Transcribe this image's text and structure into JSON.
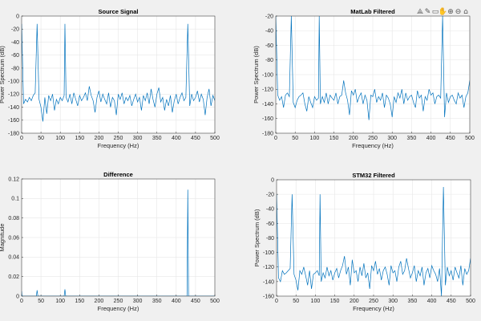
{
  "toolbar": {
    "icons": [
      "data-tips-icon",
      "brush-icon",
      "rotate-icon",
      "pan-icon",
      "zoom-in-icon",
      "zoom-out-icon",
      "home-icon"
    ],
    "glyphs": [
      "⟁",
      "✎",
      "▭",
      "✋",
      "⊕",
      "⊖",
      "⌂"
    ]
  },
  "colors": {
    "line": "#0072bd",
    "grid": "#e6e6e6",
    "axes": "#262626",
    "background": "#f0f0f0"
  },
  "chart_data": [
    {
      "type": "line",
      "title": "Source Signal",
      "xlabel": "Frequency (Hz)",
      "ylabel": "Power Spectrum (dB)",
      "xlim": [
        0,
        500
      ],
      "ylim": [
        -180,
        0
      ],
      "xticks": [
        0,
        50,
        100,
        150,
        200,
        250,
        300,
        350,
        400,
        450,
        500
      ],
      "yticks": [
        -180,
        -160,
        -140,
        -120,
        -100,
        -80,
        -60,
        -40,
        -20,
        0
      ],
      "grid": true,
      "x": [
        0,
        5,
        10,
        15,
        20,
        25,
        30,
        35,
        40,
        45,
        50,
        55,
        60,
        65,
        70,
        75,
        80,
        85,
        90,
        95,
        100,
        105,
        110,
        112,
        115,
        120,
        125,
        130,
        135,
        140,
        145,
        150,
        155,
        160,
        165,
        170,
        175,
        180,
        185,
        190,
        195,
        200,
        205,
        210,
        215,
        220,
        225,
        230,
        235,
        240,
        245,
        250,
        255,
        260,
        265,
        270,
        275,
        280,
        285,
        290,
        295,
        300,
        305,
        310,
        315,
        320,
        325,
        330,
        335,
        340,
        345,
        350,
        355,
        360,
        365,
        370,
        375,
        380,
        385,
        390,
        395,
        400,
        405,
        410,
        415,
        420,
        425,
        430,
        435,
        440,
        445,
        450,
        455,
        460,
        465,
        470,
        475,
        480,
        485,
        490,
        495,
        500
      ],
      "y": [
        -12,
        -135,
        -128,
        -132,
        -125,
        -130,
        -122,
        -118,
        -12,
        -128,
        -140,
        -162,
        -125,
        -150,
        -122,
        -130,
        -120,
        -145,
        -128,
        -135,
        -125,
        -130,
        -122,
        -12,
        -125,
        -132,
        -120,
        -135,
        -118,
        -128,
        -138,
        -122,
        -130,
        -125,
        -118,
        -130,
        -108,
        -122,
        -130,
        -148,
        -125,
        -115,
        -132,
        -120,
        -128,
        -135,
        -118,
        -140,
        -125,
        -130,
        -152,
        -120,
        -128,
        -118,
        -135,
        -125,
        -130,
        -122,
        -138,
        -128,
        -120,
        -132,
        -125,
        -145,
        -122,
        -130,
        -118,
        -135,
        -112,
        -128,
        -140,
        -120,
        -110,
        -132,
        -125,
        -145,
        -128,
        -138,
        -122,
        -148,
        -130,
        -120,
        -135,
        -125,
        -118,
        -130,
        -125,
        -12,
        -138,
        -120,
        -130,
        -125,
        -115,
        -132,
        -120,
        -128,
        -152,
        -125,
        -112,
        -138,
        -122,
        -130
      ]
    },
    {
      "type": "line",
      "title": "MatLab Filtered",
      "xlabel": "Frequency (Hz)",
      "ylabel": "Power Spectrum (dB)",
      "xlim": [
        0,
        500
      ],
      "ylim": [
        -180,
        -20
      ],
      "xticks": [
        0,
        50,
        100,
        150,
        200,
        250,
        300,
        350,
        400,
        450,
        500
      ],
      "yticks": [
        -180,
        -160,
        -140,
        -120,
        -100,
        -80,
        -60,
        -40,
        -20
      ],
      "grid": true,
      "x": [
        0,
        5,
        10,
        15,
        20,
        25,
        30,
        35,
        40,
        45,
        50,
        55,
        60,
        65,
        70,
        75,
        80,
        85,
        90,
        95,
        100,
        105,
        110,
        112,
        115,
        120,
        125,
        130,
        135,
        140,
        145,
        150,
        155,
        160,
        165,
        170,
        175,
        180,
        185,
        190,
        195,
        200,
        205,
        210,
        215,
        220,
        225,
        230,
        235,
        240,
        245,
        250,
        255,
        260,
        265,
        270,
        275,
        280,
        285,
        290,
        295,
        300,
        305,
        310,
        315,
        320,
        325,
        330,
        335,
        340,
        345,
        350,
        355,
        360,
        365,
        370,
        375,
        380,
        385,
        390,
        395,
        400,
        405,
        410,
        415,
        420,
        425,
        430,
        435,
        440,
        445,
        450,
        455,
        460,
        465,
        470,
        475,
        480,
        485,
        490,
        495,
        500
      ],
      "y": [
        -20,
        -128,
        -135,
        -130,
        -145,
        -128,
        -125,
        -130,
        -20,
        -138,
        -145,
        -135,
        -130,
        -128,
        -125,
        -140,
        -150,
        -130,
        -138,
        -145,
        -130,
        -135,
        -132,
        -20,
        -140,
        -130,
        -138,
        -125,
        -140,
        -128,
        -132,
        -135,
        -125,
        -140,
        -130,
        -128,
        -108,
        -125,
        -135,
        -155,
        -122,
        -128,
        -120,
        -138,
        -130,
        -125,
        -140,
        -128,
        -135,
        -162,
        -128,
        -130,
        -120,
        -138,
        -130,
        -135,
        -125,
        -145,
        -128,
        -132,
        -140,
        -158,
        -130,
        -138,
        -125,
        -132,
        -120,
        -140,
        -125,
        -135,
        -130,
        -128,
        -138,
        -145,
        -122,
        -132,
        -128,
        -150,
        -130,
        -135,
        -120,
        -128,
        -125,
        -140,
        -130,
        -128,
        -132,
        -20,
        -158,
        -125,
        -138,
        -130,
        -128,
        -135,
        -140,
        -125,
        -132,
        -128,
        -145,
        -130,
        -125,
        -108
      ]
    },
    {
      "type": "line",
      "title": "Difference",
      "xlabel": "Frequency (Hz)",
      "ylabel": "Magnitude",
      "xlim": [
        0,
        500
      ],
      "ylim": [
        0,
        0.12
      ],
      "xticks": [
        0,
        50,
        100,
        150,
        200,
        250,
        300,
        350,
        400,
        450,
        500
      ],
      "yticks": [
        0,
        0.02,
        0.04,
        0.06,
        0.08,
        0.1,
        0.12
      ],
      "grid": true,
      "x": [
        0,
        1,
        38,
        40,
        42,
        110,
        112,
        114,
        428,
        430,
        432,
        500
      ],
      "y": [
        0.005,
        0,
        0,
        0.006,
        0,
        0,
        0.007,
        0,
        0,
        0.109,
        0,
        0
      ]
    },
    {
      "type": "line",
      "title": "STM32 Filtered",
      "xlabel": "Frequency (Hz)",
      "ylabel": "Power Spectrum (dB)",
      "xlim": [
        0,
        500
      ],
      "ylim": [
        -160,
        0
      ],
      "xticks": [
        0,
        50,
        100,
        150,
        200,
        250,
        300,
        350,
        400,
        450,
        500
      ],
      "yticks": [
        -160,
        -140,
        -120,
        -100,
        -80,
        -60,
        -40,
        -20,
        0
      ],
      "grid": true,
      "x": [
        0,
        5,
        10,
        15,
        20,
        25,
        30,
        35,
        40,
        45,
        50,
        55,
        60,
        65,
        70,
        75,
        80,
        85,
        90,
        95,
        100,
        105,
        110,
        112,
        115,
        120,
        125,
        130,
        135,
        140,
        145,
        150,
        155,
        160,
        165,
        170,
        175,
        180,
        185,
        190,
        195,
        200,
        205,
        210,
        215,
        220,
        225,
        230,
        235,
        240,
        245,
        250,
        255,
        260,
        265,
        270,
        275,
        280,
        285,
        290,
        295,
        300,
        305,
        310,
        315,
        320,
        325,
        330,
        335,
        340,
        345,
        350,
        355,
        360,
        365,
        370,
        375,
        380,
        385,
        390,
        395,
        400,
        405,
        410,
        415,
        420,
        425,
        430,
        435,
        440,
        445,
        450,
        455,
        460,
        465,
        470,
        475,
        480,
        485,
        490,
        495,
        500
      ],
      "y": [
        -20,
        -135,
        -140,
        -125,
        -130,
        -128,
        -125,
        -122,
        -20,
        -130,
        -138,
        -152,
        -125,
        -130,
        -120,
        -132,
        -145,
        -125,
        -150,
        -130,
        -128,
        -125,
        -132,
        -20,
        -140,
        -128,
        -135,
        -120,
        -132,
        -125,
        -138,
        -128,
        -122,
        -135,
        -125,
        -118,
        -105,
        -130,
        -120,
        -145,
        -110,
        -128,
        -125,
        -140,
        -120,
        -132,
        -115,
        -135,
        -128,
        -150,
        -118,
        -125,
        -112,
        -130,
        -122,
        -138,
        -125,
        -120,
        -130,
        -145,
        -118,
        -128,
        -125,
        -140,
        -120,
        -112,
        -130,
        -125,
        -108,
        -122,
        -135,
        -128,
        -118,
        -140,
        -125,
        -132,
        -120,
        -145,
        -128,
        -122,
        -135,
        -118,
        -125,
        -130,
        -140,
        -122,
        -160,
        -10,
        -145,
        -120,
        -132,
        -125,
        -138,
        -120,
        -128,
        -135,
        -118,
        -145,
        -122,
        -130,
        -125,
        -108
      ]
    }
  ]
}
